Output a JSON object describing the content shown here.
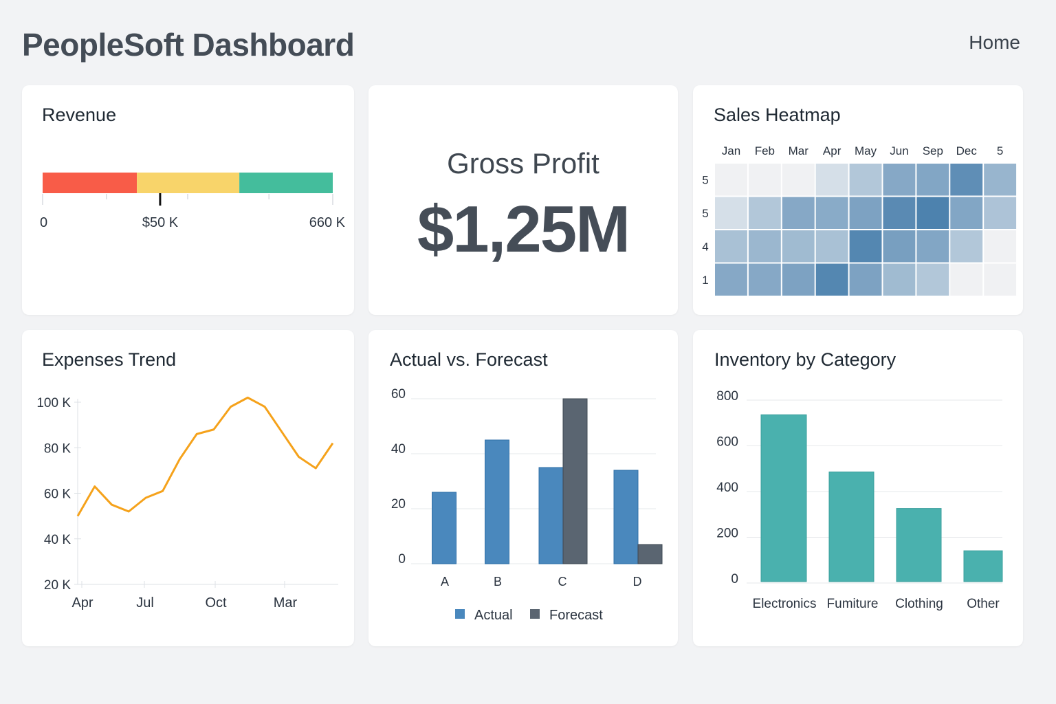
{
  "header": {
    "title": "PeopleSoft Dashboard",
    "home_link": "Home"
  },
  "revenue": {
    "title": "Revenue",
    "segments": [
      {
        "to_fraction": 0.325,
        "color": "#f85c48"
      },
      {
        "to_fraction": 0.678,
        "color": "#f8d46a"
      },
      {
        "to_fraction": 1.0,
        "color": "#44bd9c"
      }
    ],
    "marker_fraction": 0.405,
    "labels": [
      "0",
      "$50 K",
      "660 K"
    ]
  },
  "gross_profit": {
    "title": "Gross Profit",
    "value": "$1,25M"
  },
  "chart_data": [
    {
      "type": "heatmap",
      "title": "Sales Heatmap",
      "columns": [
        "Jan",
        "Feb",
        "Mar",
        "Apr",
        "May",
        "Jun",
        "Sep",
        "Dec",
        "5"
      ],
      "rows": [
        "5",
        "5",
        "4",
        "1"
      ],
      "values": [
        [
          0,
          0,
          0,
          0.15,
          0.35,
          0.6,
          0.62,
          0.82,
          0.5
        ],
        [
          0.15,
          0.35,
          0.6,
          0.58,
          0.65,
          0.85,
          0.92,
          0.62,
          0.38
        ],
        [
          0.4,
          0.48,
          0.45,
          0.4,
          0.88,
          0.68,
          0.62,
          0.35,
          0
        ],
        [
          0.6,
          0.6,
          0.65,
          0.88,
          0.65,
          0.45,
          0.35,
          0,
          0
        ]
      ],
      "color_low": "#f0f1f3",
      "color_high": "#3f78a8"
    },
    {
      "type": "line",
      "title": "Expenses Trend",
      "x_tick_labels": [
        "Apr",
        "Jul",
        "Oct",
        "Mar"
      ],
      "y_tick_labels": [
        "100 K",
        "80 K",
        "60 K",
        "40 K",
        "20 K"
      ],
      "ylim": [
        20,
        100
      ],
      "y_unit": "K",
      "values": [
        50,
        63,
        55,
        52,
        58,
        61,
        75,
        86,
        88,
        98,
        102,
        98,
        87,
        76,
        71,
        82
      ],
      "color": "#f5a21b",
      "grid": false
    },
    {
      "type": "bar",
      "title": "Actual vs. Forecast",
      "categories": [
        "A",
        "B",
        "C",
        "D"
      ],
      "series": [
        {
          "name": "Actual",
          "values": [
            26,
            45,
            35,
            34
          ],
          "color": "#4a88bd"
        },
        {
          "name": "Forecast",
          "values": [
            null,
            null,
            60,
            7
          ],
          "color": "#5a6571"
        }
      ],
      "y_ticks": [
        0,
        20,
        40,
        60
      ],
      "ylim": [
        0,
        60
      ],
      "grid": true,
      "legend": "bottom"
    },
    {
      "type": "bar",
      "title": "Inventory by Category",
      "categories": [
        "Electronics",
        "Fumiture",
        "Clothing",
        "Other"
      ],
      "values": [
        730,
        480,
        320,
        135
      ],
      "y_ticks": [
        0,
        200,
        400,
        600,
        800
      ],
      "ylim": [
        0,
        800
      ],
      "color": "#4ab1ae",
      "grid": true
    }
  ]
}
